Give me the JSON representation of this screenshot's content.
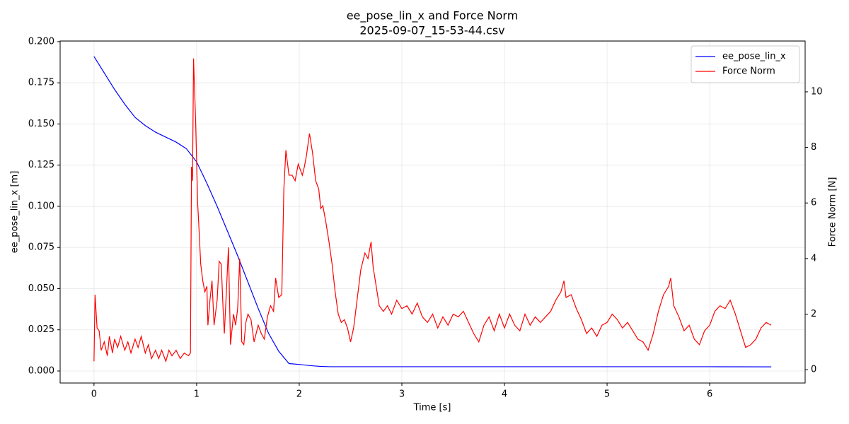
{
  "chart_data": {
    "type": "line",
    "title": "ee_pose_lin_x and Force Norm",
    "subtitle": "2025-09-07_15-53-44.csv",
    "x_label": "Time [s]",
    "y_label": "ee_pose_lin_x [m]",
    "y2_label": "Force Norm [N]",
    "xlim": [
      -0.33,
      6.93
    ],
    "ylim": [
      -0.0073,
      0.2004
    ],
    "y2lim": [
      -0.48,
      11.83
    ],
    "xticks": [
      0,
      1,
      2,
      3,
      4,
      5,
      6
    ],
    "yticks": [
      {
        "value": 0,
        "label": "0.000"
      },
      {
        "value": 0.025,
        "label": "0.025"
      },
      {
        "value": 0.05,
        "label": "0.050"
      },
      {
        "value": 0.075,
        "label": "0.075"
      },
      {
        "value": 0.1,
        "label": "0.100"
      },
      {
        "value": 0.125,
        "label": "0.125"
      },
      {
        "value": 0.15,
        "label": "0.150"
      },
      {
        "value": 0.175,
        "label": "0.175"
      },
      {
        "value": 0.2,
        "label": "0.200"
      }
    ],
    "y2ticks": [
      0,
      2,
      4,
      6,
      8,
      10
    ],
    "grid": true,
    "legend": "upper right",
    "series": [
      {
        "name": "ee_pose_lin_x",
        "color": "#0000ff",
        "axis": "y",
        "x": [
          0,
          0.1,
          0.2,
          0.3,
          0.4,
          0.5,
          0.6,
          0.7,
          0.8,
          0.9,
          1.0,
          1.1,
          1.2,
          1.3,
          1.4,
          1.5,
          1.6,
          1.7,
          1.8,
          1.9,
          2.0,
          2.1,
          2.2,
          2.3,
          2.4,
          3,
          4,
          5,
          6,
          6.6
        ],
        "values": [
          0.191,
          0.181,
          0.171,
          0.162,
          0.154,
          0.149,
          0.145,
          0.142,
          0.139,
          0.135,
          0.127,
          0.114,
          0.1,
          0.085,
          0.07,
          0.054,
          0.038,
          0.023,
          0.012,
          0.0045,
          0.004,
          0.0033,
          0.0028,
          0.0026,
          0.0026,
          0.0026,
          0.0026,
          0.0026,
          0.0026,
          0.0025
        ]
      },
      {
        "name": "Force Norm",
        "color": "#ff0000",
        "axis": "y2",
        "x": [
          0,
          0.01,
          0.03,
          0.05,
          0.07,
          0.1,
          0.13,
          0.15,
          0.18,
          0.2,
          0.23,
          0.26,
          0.3,
          0.33,
          0.36,
          0.4,
          0.43,
          0.46,
          0.5,
          0.53,
          0.56,
          0.6,
          0.63,
          0.66,
          0.7,
          0.73,
          0.76,
          0.8,
          0.84,
          0.88,
          0.92,
          0.94,
          0.95,
          0.96,
          0.97,
          0.99,
          1.01,
          1.02,
          1.04,
          1.06,
          1.08,
          1.1,
          1.11,
          1.13,
          1.15,
          1.17,
          1.2,
          1.22,
          1.24,
          1.26,
          1.27,
          1.29,
          1.31,
          1.33,
          1.36,
          1.38,
          1.4,
          1.42,
          1.44,
          1.46,
          1.48,
          1.5,
          1.53,
          1.56,
          1.6,
          1.63,
          1.66,
          1.69,
          1.72,
          1.75,
          1.77,
          1.8,
          1.83,
          1.85,
          1.87,
          1.9,
          1.93,
          1.96,
          1.99,
          2.0,
          2.03,
          2.05,
          2.07,
          2.1,
          2.13,
          2.16,
          2.19,
          2.21,
          2.23,
          2.26,
          2.29,
          2.32,
          2.35,
          2.38,
          2.41,
          2.44,
          2.47,
          2.5,
          2.53,
          2.56,
          2.6,
          2.64,
          2.67,
          2.7,
          2.72,
          2.75,
          2.78,
          2.82,
          2.86,
          2.9,
          2.95,
          3.0,
          3.05,
          3.1,
          3.15,
          3.2,
          3.25,
          3.3,
          3.35,
          3.4,
          3.45,
          3.5,
          3.55,
          3.6,
          3.65,
          3.7,
          3.75,
          3.8,
          3.85,
          3.9,
          3.95,
          4.0,
          4.05,
          4.1,
          4.15,
          4.2,
          4.25,
          4.3,
          4.35,
          4.4,
          4.45,
          4.5,
          4.55,
          4.58,
          4.6,
          4.65,
          4.7,
          4.75,
          4.8,
          4.85,
          4.9,
          4.95,
          5.0,
          5.05,
          5.1,
          5.15,
          5.2,
          5.25,
          5.3,
          5.35,
          5.4,
          5.45,
          5.5,
          5.55,
          5.6,
          5.62,
          5.65,
          5.7,
          5.75,
          5.8,
          5.85,
          5.9,
          5.95,
          6.0,
          6.05,
          6.1,
          6.15,
          6.2,
          6.25,
          6.3,
          6.35,
          6.4,
          6.45,
          6.5,
          6.55,
          6.6
        ],
        "values": [
          0.3,
          2.7,
          1.5,
          1.4,
          0.7,
          1.0,
          0.5,
          1.2,
          0.6,
          1.1,
          0.8,
          1.2,
          0.7,
          1.0,
          0.6,
          1.1,
          0.8,
          1.2,
          0.6,
          0.9,
          0.4,
          0.7,
          0.4,
          0.7,
          0.3,
          0.7,
          0.5,
          0.7,
          0.4,
          0.6,
          0.5,
          0.6,
          7.3,
          6.8,
          11.2,
          9.0,
          6.0,
          5.3,
          3.8,
          3.2,
          2.8,
          3.0,
          1.6,
          2.5,
          3.2,
          1.6,
          2.5,
          3.9,
          3.8,
          2.0,
          1.3,
          2.8,
          4.4,
          0.9,
          2.0,
          1.6,
          2.2,
          4.0,
          1.0,
          0.9,
          1.7,
          2.0,
          1.8,
          1.0,
          1.6,
          1.3,
          1.1,
          1.9,
          2.3,
          2.1,
          3.3,
          2.6,
          2.7,
          6.5,
          7.9,
          7.0,
          7.0,
          6.8,
          7.4,
          7.3,
          7.0,
          7.3,
          7.7,
          8.5,
          7.8,
          6.8,
          6.5,
          5.8,
          5.9,
          5.3,
          4.6,
          3.8,
          2.8,
          2.0,
          1.7,
          1.8,
          1.5,
          1.0,
          1.5,
          2.4,
          3.6,
          4.2,
          4.0,
          4.6,
          3.7,
          3.0,
          2.3,
          2.1,
          2.3,
          2.0,
          2.5,
          2.2,
          2.3,
          2.0,
          2.4,
          1.9,
          1.7,
          2.0,
          1.5,
          1.9,
          1.6,
          2.0,
          1.9,
          2.1,
          1.7,
          1.3,
          1.0,
          1.6,
          1.9,
          1.4,
          2.0,
          1.5,
          2.0,
          1.6,
          1.4,
          2.0,
          1.6,
          1.9,
          1.7,
          1.9,
          2.1,
          2.5,
          2.8,
          3.2,
          2.6,
          2.7,
          2.2,
          1.8,
          1.3,
          1.5,
          1.2,
          1.6,
          1.7,
          2.0,
          1.8,
          1.5,
          1.7,
          1.4,
          1.1,
          1.0,
          0.7,
          1.3,
          2.1,
          2.7,
          3.0,
          3.3,
          2.3,
          1.9,
          1.4,
          1.6,
          1.1,
          0.9,
          1.4,
          1.6,
          2.1,
          2.3,
          2.2,
          2.5,
          2.0,
          1.4,
          0.8,
          0.9,
          1.1,
          1.5,
          1.7,
          1.6
        ]
      }
    ]
  }
}
